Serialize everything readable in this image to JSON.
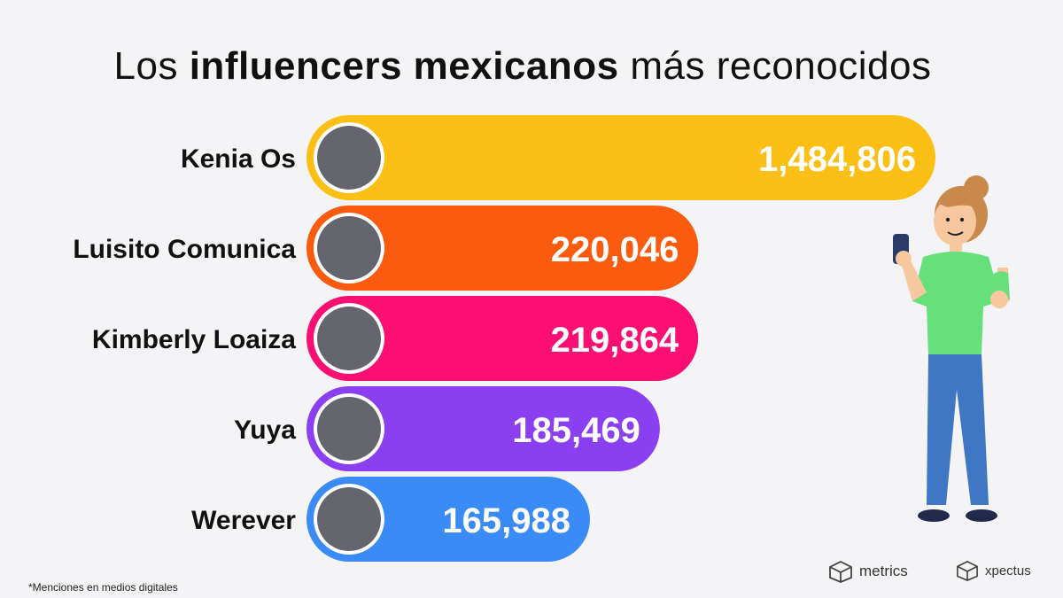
{
  "title": {
    "pre": "Los ",
    "bold": "influencers mexicanos",
    "post": " más reconocidos"
  },
  "footnote": "*Menciones en medios digitales",
  "logos": {
    "metrics": "metrics",
    "xpectus": "xpectus"
  },
  "colors": {
    "background": "#f4f4f6",
    "bars": [
      "#fbbf16",
      "#fb5b0e",
      "#fb0f72",
      "#8a3ff0",
      "#3a8bf5"
    ]
  },
  "chart_data": {
    "type": "bar",
    "orientation": "horizontal",
    "categories": [
      "Kenia Os",
      "Luisito Comunica",
      "Kimberly Loaiza",
      "Yuya",
      "Werever"
    ],
    "values": [
      1484806,
      220046,
      219864,
      185469,
      165988
    ],
    "data_labels": [
      "1,484,806",
      "220,046",
      "219,864",
      "185,469",
      "165,988"
    ],
    "title": "Los influencers mexicanos más reconocidos",
    "note": "scale is non-linear (first bar not proportional)",
    "grid": false
  }
}
